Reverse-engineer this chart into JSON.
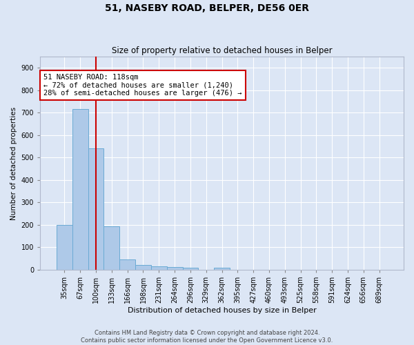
{
  "title1": "51, NASEBY ROAD, BELPER, DE56 0ER",
  "title2": "Size of property relative to detached houses in Belper",
  "xlabel": "Distribution of detached houses by size in Belper",
  "ylabel": "Number of detached properties",
  "categories": [
    "35sqm",
    "67sqm",
    "100sqm",
    "133sqm",
    "166sqm",
    "198sqm",
    "231sqm",
    "264sqm",
    "296sqm",
    "329sqm",
    "362sqm",
    "395sqm",
    "427sqm",
    "460sqm",
    "493sqm",
    "525sqm",
    "558sqm",
    "591sqm",
    "624sqm",
    "656sqm",
    "689sqm"
  ],
  "values": [
    200,
    716,
    540,
    192,
    46,
    20,
    14,
    12,
    10,
    0,
    9,
    0,
    0,
    0,
    0,
    0,
    0,
    0,
    0,
    0,
    0
  ],
  "bar_color": "#aec9e8",
  "bar_edge_color": "#6aaad4",
  "property_bin_index": 2,
  "annotation_line1": "51 NASEBY ROAD: 118sqm",
  "annotation_line2": "← 72% of detached houses are smaller (1,240)",
  "annotation_line3": "28% of semi-detached houses are larger (476) →",
  "vline_color": "#cc0000",
  "background_color": "#dce6f5",
  "grid_color": "#ffffff",
  "footer_line1": "Contains HM Land Registry data © Crown copyright and database right 2024.",
  "footer_line2": "Contains public sector information licensed under the Open Government Licence v3.0.",
  "ylim": [
    0,
    950
  ],
  "yticks": [
    0,
    100,
    200,
    300,
    400,
    500,
    600,
    700,
    800,
    900
  ]
}
